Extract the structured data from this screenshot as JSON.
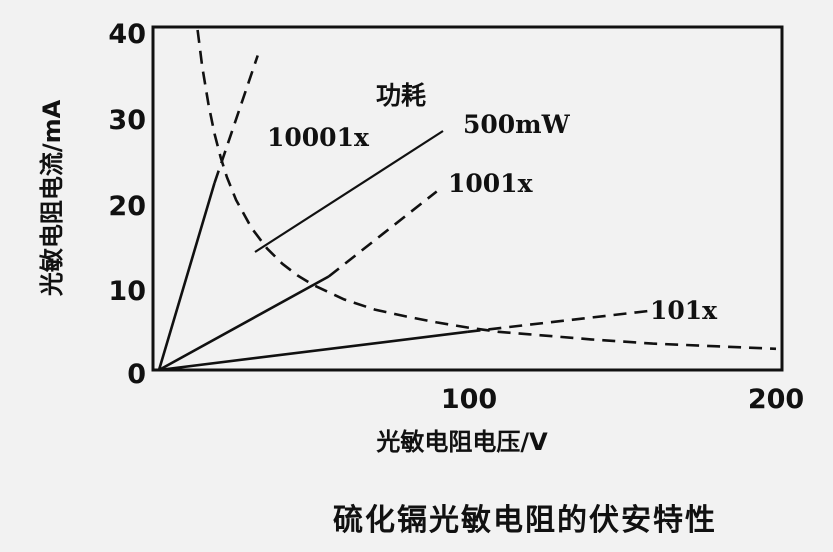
{
  "chart_data": {
    "type": "line",
    "title": "",
    "caption": "硫化镉光敏电阻的伏安特性",
    "xlabel": "光敏电阻电压/V",
    "ylabel": "光敏电阻电流/mA",
    "xlim": [
      0,
      200
    ],
    "ylim": [
      0,
      40
    ],
    "x_ticks": [
      "100",
      "200"
    ],
    "y_ticks": [
      "0",
      "10",
      "20",
      "30",
      "40"
    ],
    "grid": false,
    "series": [
      {
        "name": "10001x",
        "style": "solid",
        "x": [
          0,
          18
        ],
        "y": [
          0,
          22
        ]
      },
      {
        "name": "10001x",
        "style": "dashed",
        "x": [
          18,
          32
        ],
        "y": [
          22,
          37
        ]
      },
      {
        "name": "1001x",
        "style": "solid",
        "x": [
          0,
          55
        ],
        "y": [
          0,
          11
        ]
      },
      {
        "name": "1001x",
        "style": "dashed",
        "x": [
          55,
          90
        ],
        "y": [
          11,
          21
        ]
      },
      {
        "name": "101x",
        "style": "solid",
        "x": [
          0,
          100
        ],
        "y": [
          0,
          4.5
        ]
      },
      {
        "name": "101x",
        "style": "dashed",
        "x": [
          100,
          160
        ],
        "y": [
          4.5,
          7
        ]
      },
      {
        "name": "500mW",
        "style": "dashed",
        "x": [
          12.5,
          14,
          16,
          18,
          20,
          22,
          25,
          30,
          35,
          40,
          45,
          50,
          60,
          70,
          80,
          90,
          100,
          110,
          120,
          140,
          160,
          180,
          200
        ],
        "y": [
          40,
          35.7,
          31.3,
          27.8,
          25,
          22.7,
          20,
          16.7,
          14.3,
          12.5,
          11.1,
          10,
          8.3,
          7.1,
          6.3,
          5.6,
          5,
          4.5,
          4.2,
          3.6,
          3.1,
          2.8,
          2.5
        ]
      }
    ],
    "annotations": {
      "power_title": "功耗",
      "power_value": "500mW",
      "label_1000": "10001x",
      "label_100": "1001x",
      "label_10": "101x"
    }
  }
}
